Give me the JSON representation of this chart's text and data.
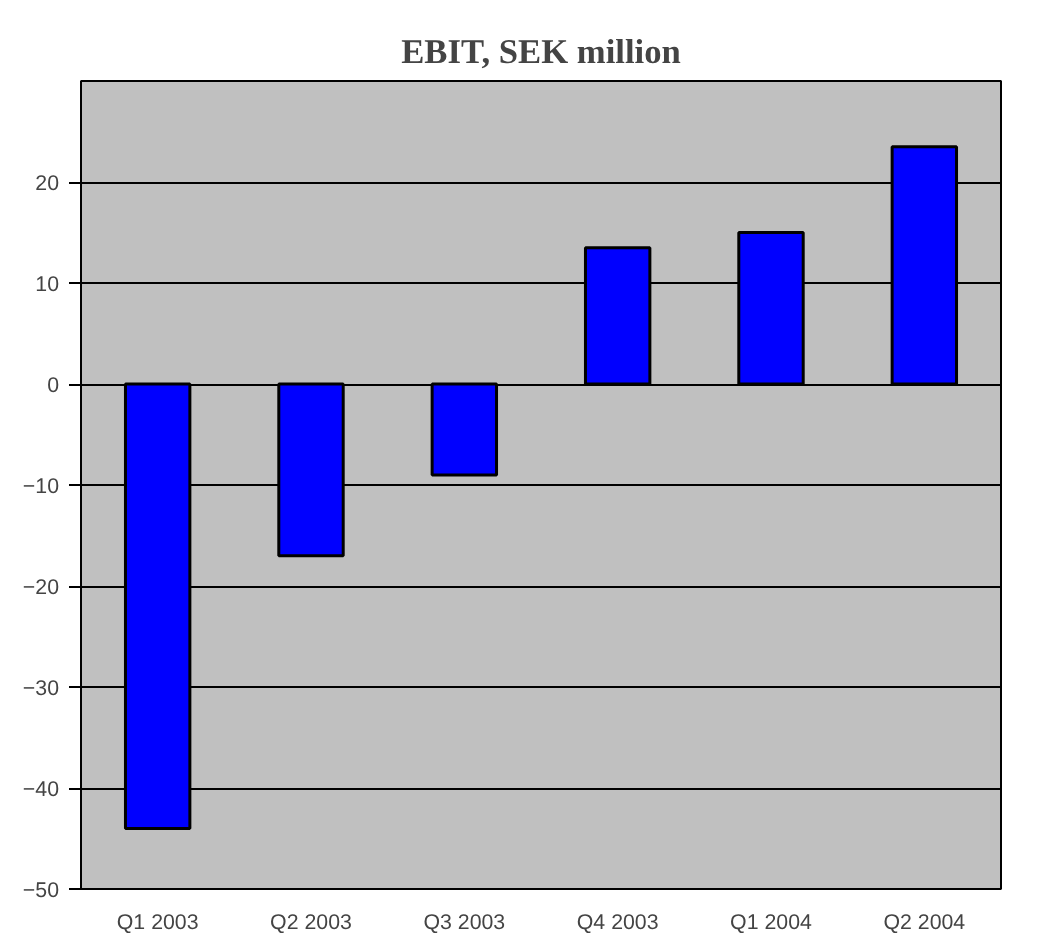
{
  "chart_data": {
    "type": "bar",
    "title": "EBIT, SEK million",
    "categories": [
      "Q1 2003",
      "Q2 2003",
      "Q3 2003",
      "Q4 2003",
      "Q1 2004",
      "Q2 2004"
    ],
    "values": [
      -44,
      -17,
      -9,
      13.5,
      15,
      23.5
    ],
    "color": "#0000ff",
    "ylim": [
      -50,
      30
    ],
    "yticks": [
      -50,
      -40,
      -30,
      -20,
      -10,
      0,
      10,
      20
    ],
    "grid": "y"
  }
}
